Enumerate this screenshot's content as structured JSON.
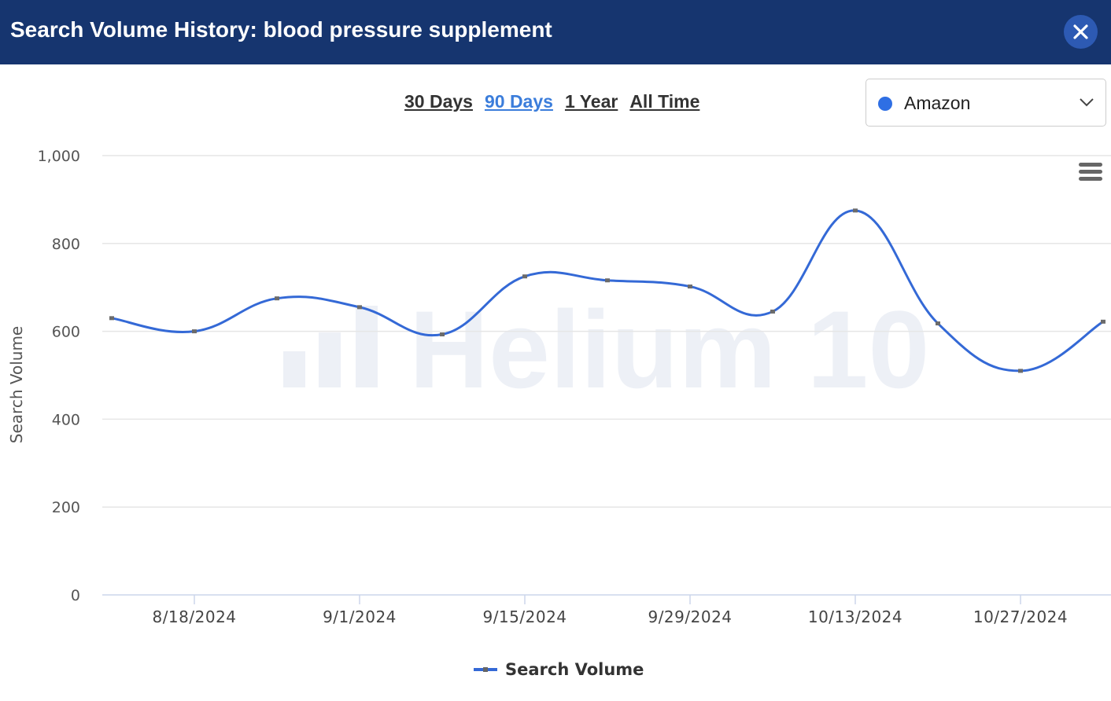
{
  "header": {
    "title": "Search Volume History: blood pressure supplement",
    "close_icon": "close-icon"
  },
  "range_links": [
    {
      "label": "30 Days",
      "active": false
    },
    {
      "label": "90 Days",
      "active": true
    },
    {
      "label": "1 Year",
      "active": false
    },
    {
      "label": "All Time",
      "active": false
    }
  ],
  "marketplace": {
    "selected": "Amazon",
    "dot_color": "#2f6fe4",
    "icon": "chevron-down-icon"
  },
  "chart_menu_icon": "hamburger-menu-icon",
  "watermark": {
    "text": "Helium 10"
  },
  "colors": {
    "header_bg": "#16356f",
    "series_line": "#3469d6",
    "active_link": "#3b7ddb"
  },
  "chart_data": {
    "type": "line",
    "title": "",
    "xlabel": "",
    "ylabel": "Search Volume",
    "ylim": [
      0,
      1000
    ],
    "yticks": [
      "0",
      "200",
      "400",
      "600",
      "800",
      "1,000"
    ],
    "x_ticks": [
      "8/18/2024",
      "9/1/2024",
      "9/15/2024",
      "9/29/2024",
      "10/13/2024",
      "10/27/2024"
    ],
    "x": [
      "8/11/2024",
      "8/18/2024",
      "8/25/2024",
      "9/1/2024",
      "9/8/2024",
      "9/15/2024",
      "9/22/2024",
      "9/29/2024",
      "10/6/2024",
      "10/13/2024",
      "10/20/2024",
      "10/27/2024",
      "11/3/2024"
    ],
    "series": [
      {
        "name": "Search Volume",
        "color": "#3469d6",
        "values": [
          630,
          600,
          675,
          655,
          593,
          725,
          716,
          702,
          645,
          875,
          618,
          510,
          622
        ]
      }
    ],
    "grid": true,
    "legend": "bottom-center"
  }
}
